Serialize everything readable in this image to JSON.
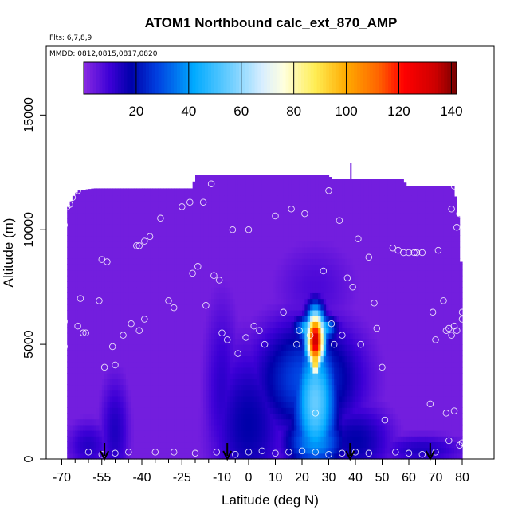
{
  "chart_data": {
    "type": "heatmap",
    "title": "ATOM1 Northbound calc_ext_870_AMP",
    "flights_text": "Flts: 6,7,8,9",
    "dates_text": "MMDD: 0812,0815,0817,0820",
    "xlabel": "Latitude (deg N)",
    "ylabel": "Altitude (m)",
    "xlim": [
      -70,
      85
    ],
    "ylim": [
      0,
      18000
    ],
    "x_ticks": [
      -70,
      -55,
      -40,
      -25,
      -10,
      0,
      10,
      20,
      30,
      40,
      50,
      60,
      70,
      80
    ],
    "x_tick_labels": [
      "-70",
      "-55",
      "-40",
      "-25",
      "-10",
      "0",
      "10",
      "20",
      "30",
      "40",
      "50",
      "60",
      "70",
      "80"
    ],
    "x_minor_ticks": [
      -65,
      -60,
      -50,
      -45,
      -35,
      -30,
      -20,
      -15,
      -5
    ],
    "y_ticks": [
      0,
      5000,
      10000,
      15000
    ],
    "y_tick_labels": [
      "0",
      "5000",
      "10000",
      "15000"
    ],
    "grid": false,
    "colorbar": {
      "range": [
        0,
        142
      ],
      "ticks": [
        20,
        40,
        60,
        80,
        100,
        120,
        140
      ],
      "tick_labels": [
        "20",
        "40",
        "60",
        "80",
        "100",
        "120",
        "140"
      ],
      "stops": [
        {
          "value": 0,
          "color": "#8a2be2"
        },
        {
          "value": 10,
          "color": "#3c00d6"
        },
        {
          "value": 18,
          "color": "#0000aa"
        },
        {
          "value": 28,
          "color": "#0040e0"
        },
        {
          "value": 42,
          "color": "#00aaff"
        },
        {
          "value": 55,
          "color": "#66ccff"
        },
        {
          "value": 68,
          "color": "#d8eeff"
        },
        {
          "value": 76,
          "color": "#ffffe0"
        },
        {
          "value": 88,
          "color": "#ffee55"
        },
        {
          "value": 100,
          "color": "#ffaa00"
        },
        {
          "value": 112,
          "color": "#ff6600"
        },
        {
          "value": 122,
          "color": "#ff0000"
        },
        {
          "value": 134,
          "color": "#cc0000"
        },
        {
          "value": 142,
          "color": "#770000"
        }
      ]
    },
    "field": {
      "lat_step": 1,
      "alt_step": 250,
      "background_value": 3,
      "ceiling_profile": [
        [
          -68,
          10900
        ],
        [
          -67,
          11100
        ],
        [
          -66,
          11400
        ],
        [
          -64,
          11700
        ],
        [
          -58,
          11800
        ],
        [
          -21,
          11800
        ],
        [
          -20,
          12400
        ],
        [
          30,
          12400
        ],
        [
          31,
          12200
        ],
        [
          58,
          12200
        ],
        [
          59,
          11900
        ],
        [
          77,
          11900
        ],
        [
          78,
          11000
        ],
        [
          79,
          10200
        ],
        [
          80,
          7000
        ]
      ],
      "column_ceilings": [
        [
          38,
          12900
        ]
      ],
      "blobs": [
        {
          "lat": 25,
          "alt": 5200,
          "lat_w": 2.5,
          "alt_w": 900,
          "value": 135
        },
        {
          "lat": 25,
          "alt": 4300,
          "lat_w": 1.5,
          "alt_w": 600,
          "value": 100
        },
        {
          "lat": 25,
          "alt": 5700,
          "lat_w": 5,
          "alt_w": 400,
          "value": 65
        },
        {
          "lat": 25,
          "alt": 2500,
          "lat_w": 6,
          "alt_w": 2200,
          "value": 55
        },
        {
          "lat": 25,
          "alt": 800,
          "lat_w": 8,
          "alt_w": 900,
          "value": 40
        },
        {
          "lat": 22,
          "alt": 3500,
          "lat_w": 14,
          "alt_w": 1800,
          "value": 30
        },
        {
          "lat": 0,
          "alt": 1500,
          "lat_w": 10,
          "alt_w": 2500,
          "value": 18
        },
        {
          "lat": -10,
          "alt": 3000,
          "lat_w": 5,
          "alt_w": 3000,
          "value": 12
        },
        {
          "lat": -50,
          "alt": 1200,
          "lat_w": 4,
          "alt_w": 1800,
          "value": 14
        },
        {
          "lat": -60,
          "alt": 600,
          "lat_w": 6,
          "alt_w": 800,
          "value": 13
        },
        {
          "lat": 40,
          "alt": 800,
          "lat_w": 10,
          "alt_w": 1200,
          "value": 18
        },
        {
          "lat": 65,
          "alt": 400,
          "lat_w": 12,
          "alt_w": 500,
          "value": 14
        },
        {
          "lat": 25,
          "alt": 7500,
          "lat_w": 12,
          "alt_w": 1500,
          "value": 8
        }
      ]
    },
    "sample_points": [
      [
        -69,
        10200
      ],
      [
        -68,
        11000
      ],
      [
        -67,
        11100
      ],
      [
        -66,
        11400
      ],
      [
        -64,
        11700
      ],
      [
        -69,
        6000
      ],
      [
        -69,
        4900
      ],
      [
        -63,
        7000
      ],
      [
        -64,
        5800
      ],
      [
        -62,
        5500
      ],
      [
        -61,
        5500
      ],
      [
        -55,
        8700
      ],
      [
        -53,
        8600
      ],
      [
        -56,
        6900
      ],
      [
        -51,
        4900
      ],
      [
        -54,
        4000
      ],
      [
        -50,
        4100
      ],
      [
        -47,
        5400
      ],
      [
        -42,
        9300
      ],
      [
        -41,
        9300
      ],
      [
        -39,
        9500
      ],
      [
        -37,
        9700
      ],
      [
        -44,
        5900
      ],
      [
        -41,
        5600
      ],
      [
        -39,
        6100
      ],
      [
        -33,
        10500
      ],
      [
        -30,
        6900
      ],
      [
        -28,
        6600
      ],
      [
        -25,
        11000
      ],
      [
        -22,
        11200
      ],
      [
        -21,
        8100
      ],
      [
        -19,
        8400
      ],
      [
        -17,
        11200
      ],
      [
        -16,
        6700
      ],
      [
        -14,
        12000
      ],
      [
        -13,
        8000
      ],
      [
        -11,
        7800
      ],
      [
        -10,
        5500
      ],
      [
        -8,
        5200
      ],
      [
        -6,
        10000
      ],
      [
        -4,
        4600
      ],
      [
        0,
        10000
      ],
      [
        2,
        5800
      ],
      [
        4,
        5600
      ],
      [
        -1,
        5300
      ],
      [
        6,
        5000
      ],
      [
        10,
        10600
      ],
      [
        13,
        6400
      ],
      [
        16,
        10900
      ],
      [
        18,
        5000
      ],
      [
        19,
        5600
      ],
      [
        21,
        10700
      ],
      [
        23,
        5400
      ],
      [
        25,
        2000
      ],
      [
        28,
        8200
      ],
      [
        30,
        11700
      ],
      [
        31,
        5900
      ],
      [
        32,
        5000
      ],
      [
        34,
        10400
      ],
      [
        35,
        5400
      ],
      [
        37,
        7900
      ],
      [
        39,
        7500
      ],
      [
        41,
        9600
      ],
      [
        42,
        5000
      ],
      [
        45,
        8800
      ],
      [
        47,
        6800
      ],
      [
        48,
        5700
      ],
      [
        50,
        4000
      ],
      [
        51,
        1700
      ],
      [
        54,
        9200
      ],
      [
        56,
        9100
      ],
      [
        58,
        9000
      ],
      [
        60,
        9000
      ],
      [
        62,
        9000
      ],
      [
        63,
        9000
      ],
      [
        65,
        9000
      ],
      [
        68,
        2400
      ],
      [
        69,
        6400
      ],
      [
        70,
        5200
      ],
      [
        71,
        9100
      ],
      [
        73,
        6900
      ],
      [
        74,
        5600
      ],
      [
        75,
        5700
      ],
      [
        76,
        5400
      ],
      [
        77,
        5800
      ],
      [
        78,
        5600
      ],
      [
        80,
        6100
      ],
      [
        76,
        10900
      ],
      [
        77,
        11900
      ],
      [
        78,
        10100
      ],
      [
        79,
        10700
      ],
      [
        80,
        6400
      ],
      [
        80,
        700
      ],
      [
        79,
        600
      ],
      [
        75,
        800
      ],
      [
        74,
        2000
      ],
      [
        77,
        2100
      ],
      [
        -70,
        300
      ],
      [
        -60,
        300
      ],
      [
        -55,
        200
      ],
      [
        -50,
        250
      ],
      [
        -45,
        300
      ],
      [
        -35,
        300
      ],
      [
        -28,
        300
      ],
      [
        -20,
        250
      ],
      [
        -12,
        300
      ],
      [
        -5,
        200
      ],
      [
        0,
        300
      ],
      [
        5,
        350
      ],
      [
        10,
        250
      ],
      [
        15,
        300
      ],
      [
        20,
        350
      ],
      [
        25,
        300
      ],
      [
        30,
        200
      ],
      [
        35,
        250
      ],
      [
        40,
        300
      ],
      [
        45,
        250
      ],
      [
        55,
        300
      ],
      [
        60,
        250
      ],
      [
        65,
        200
      ],
      [
        70,
        300
      ]
    ],
    "arrows_lat": [
      -54,
      -8,
      38,
      68
    ]
  }
}
